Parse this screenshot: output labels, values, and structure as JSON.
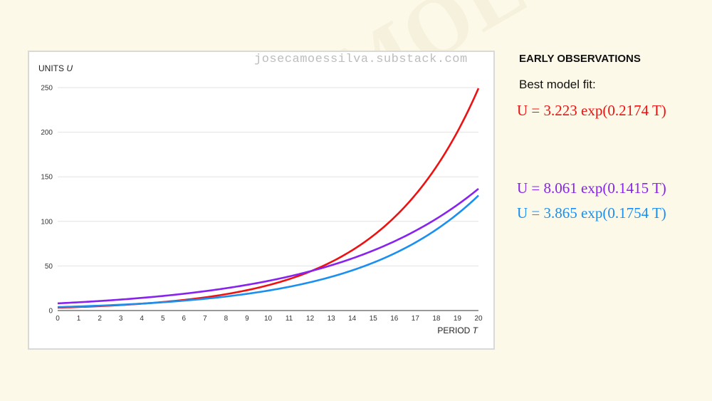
{
  "watermark": {
    "url": "josecamoessilva.substack.com",
    "diagonal": "JOSECAMOESSILVA"
  },
  "sidebar": {
    "title": "EARLY OBSERVATIONS",
    "subtitle": "Best model fit:",
    "equations": [
      {
        "text": "U = 3.223  exp(0.2174 T)",
        "color": "#ee1111"
      },
      {
        "text": "U = 8.061  exp(0.1415 T)",
        "color": "#8822ee"
      },
      {
        "text": "U = 3.865  exp(0.1754 T)",
        "color": "#1a8ff0"
      }
    ]
  },
  "chart_data": {
    "type": "line",
    "ylabel": "UNITS U",
    "xlabel": "PERIOD T",
    "xlim": [
      0,
      20
    ],
    "ylim": [
      0,
      250
    ],
    "xticks": [
      0,
      1,
      2,
      3,
      4,
      5,
      6,
      7,
      8,
      9,
      10,
      11,
      12,
      13,
      14,
      15,
      16,
      17,
      18,
      19,
      20
    ],
    "yticks": [
      0,
      50,
      100,
      150,
      200,
      250
    ],
    "grid": true,
    "series": [
      {
        "color": "#ee1111",
        "a": 3.223,
        "b": 0.2174
      },
      {
        "color": "#8822ee",
        "a": 8.061,
        "b": 0.1415
      },
      {
        "color": "#1a8ff0",
        "a": 3.865,
        "b": 0.1754
      }
    ]
  }
}
